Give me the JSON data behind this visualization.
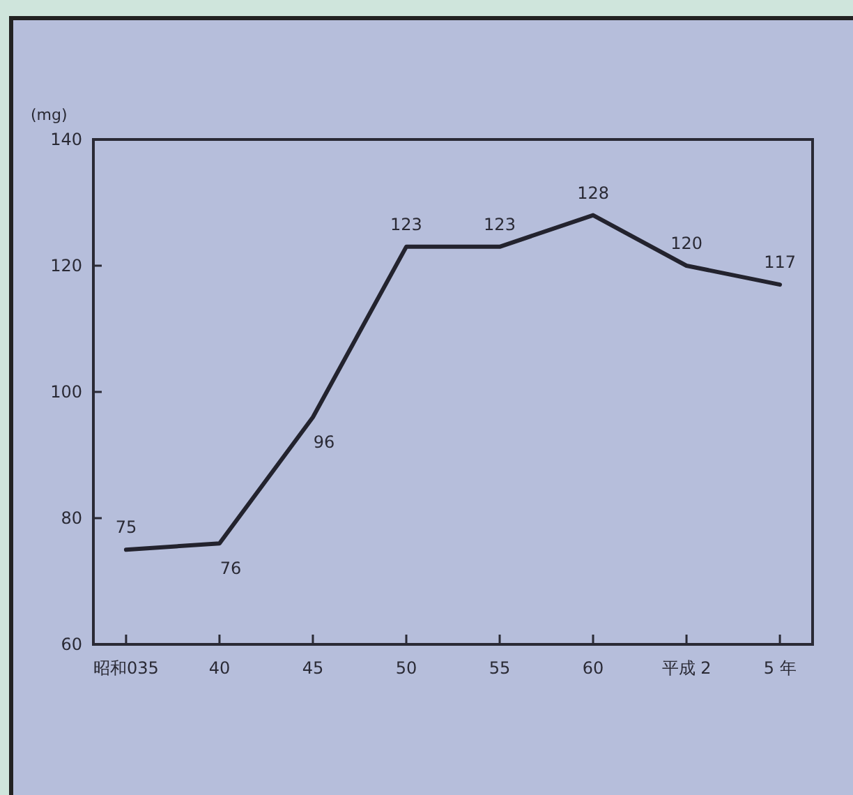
{
  "chart_data": {
    "type": "line",
    "ylabel": "(mg)",
    "categories": [
      "昭和035",
      "40",
      "45",
      "50",
      "55",
      "60",
      "平成 2",
      "5 年"
    ],
    "series": [
      {
        "color": "#23232e",
        "values": [
          75,
          76,
          96,
          123,
          123,
          128,
          120,
          117
        ]
      }
    ],
    "ylim": [
      60,
      140
    ],
    "yticks": [
      60,
      80,
      100,
      120,
      140
    ],
    "data_labels": true,
    "marker": "none",
    "line_style": "solid",
    "grid": false
  }
}
